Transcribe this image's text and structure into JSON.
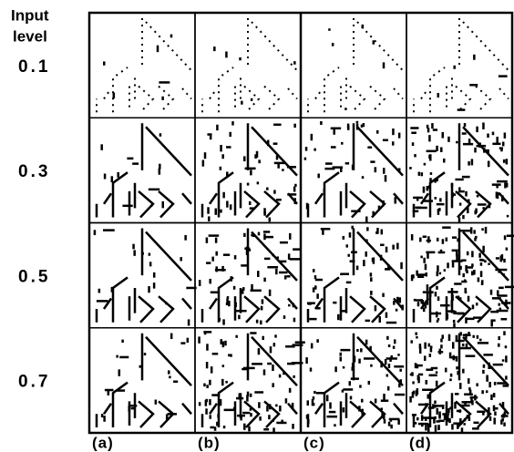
{
  "y_label": {
    "line1": "Input",
    "line2": "level"
  },
  "rows": [
    "0.1",
    "0.3",
    "0.5",
    "0.7"
  ],
  "columns": [
    "(a)",
    "(b)",
    "(c)",
    "(d)"
  ]
}
